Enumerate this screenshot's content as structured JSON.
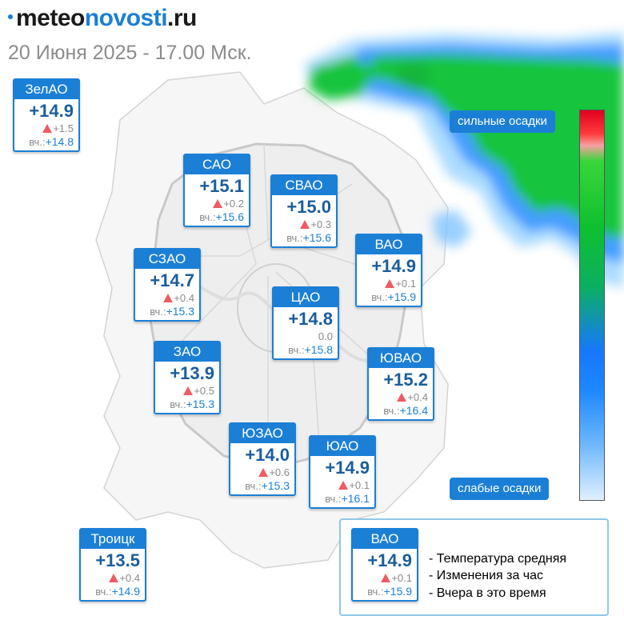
{
  "header": {
    "logo_part1": "meteo",
    "logo_part2": "novosti",
    "logo_part3": ".ru",
    "date": "20 Июня 2025 - 17.00 Мск."
  },
  "scale": {
    "strong_label": "сильные осадки",
    "weak_label": "слабые осадки"
  },
  "districts": [
    {
      "name": "ЗелАО",
      "temp": "+14.9",
      "change": "+1.5",
      "trend": "up",
      "yday_label": "вч.:",
      "yday": "+14.8"
    },
    {
      "name": "САО",
      "temp": "+15.1",
      "change": "+0.2",
      "trend": "up",
      "yday_label": "вч.:",
      "yday": "+15.6"
    },
    {
      "name": "СВАО",
      "temp": "+15.0",
      "change": "+0.3",
      "trend": "up",
      "yday_label": "вч.:",
      "yday": "+15.6"
    },
    {
      "name": "ВАО",
      "temp": "+14.9",
      "change": "+0.1",
      "trend": "up",
      "yday_label": "вч.:",
      "yday": "+15.9"
    },
    {
      "name": "СЗАО",
      "temp": "+14.7",
      "change": "+0.4",
      "trend": "up",
      "yday_label": "вч.:",
      "yday": "+15.3"
    },
    {
      "name": "ЦАО",
      "temp": "+14.8",
      "change": "0.0",
      "trend": "none",
      "yday_label": "вч.:",
      "yday": "+15.8"
    },
    {
      "name": "ЗАО",
      "temp": "+13.9",
      "change": "+0.5",
      "trend": "up",
      "yday_label": "вч.:",
      "yday": "+15.3"
    },
    {
      "name": "ЮВАО",
      "temp": "+15.2",
      "change": "+0.4",
      "trend": "up",
      "yday_label": "вч.:",
      "yday": "+16.4"
    },
    {
      "name": "ЮЗАО",
      "temp": "+14.0",
      "change": "+0.6",
      "trend": "up",
      "yday_label": "вч.:",
      "yday": "+15.3"
    },
    {
      "name": "ЮАО",
      "temp": "+14.9",
      "change": "+0.1",
      "trend": "up",
      "yday_label": "вч.:",
      "yday": "+16.1"
    },
    {
      "name": "Троицк",
      "temp": "+13.5",
      "change": "+0.4",
      "trend": "up",
      "yday_label": "вч.:",
      "yday": "+14.9"
    }
  ],
  "legend": {
    "card": {
      "name": "ВАО",
      "temp": "+14.9",
      "change": "+0.1",
      "trend": "up",
      "yday_label": "вч.:",
      "yday": "+15.9"
    },
    "lines": [
      "- Температура средняя",
      "- Изменения за час",
      "- Вчера в это время"
    ]
  },
  "colors": {
    "accent": "#1b7fd6",
    "temp_text": "#1a5e9e",
    "rise_triangle": "#ef5b63",
    "legend_border": "#8fc7e8",
    "precip_strong": "#e1001f",
    "precip_medium": "#0ec02e",
    "precip_light": "#1677ff"
  }
}
